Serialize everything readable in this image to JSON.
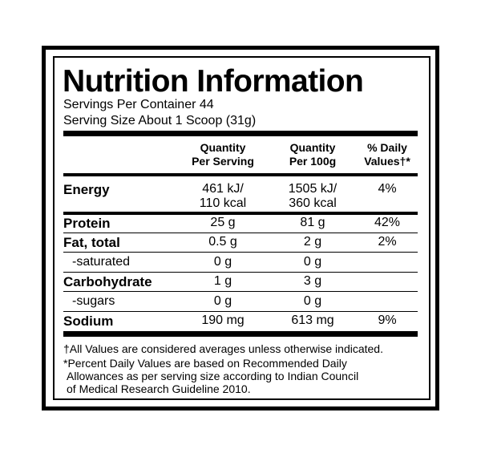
{
  "title": "Nutrition Information",
  "servings": [
    "Servings Per Container 44",
    "Serving Size About 1 Scoop (31g)"
  ],
  "headers": [
    [
      "Quantity",
      "Per Serving"
    ],
    [
      "Quantity",
      "Per 100g"
    ],
    [
      "% Daily",
      "Values†*"
    ]
  ],
  "rows": [
    {
      "name": "Energy",
      "per_serving": [
        "461 kJ/",
        "110 kcal"
      ],
      "per_100g": [
        "1505 kJ/",
        "360 kcal"
      ],
      "daily": "4%"
    },
    {
      "name": "Protein",
      "per_serving": "25 g",
      "per_100g": "81 g",
      "daily": "42%"
    },
    {
      "name": "Fat, total",
      "per_serving": "0.5 g",
      "per_100g": "2 g",
      "daily": "2%"
    },
    {
      "name": "-saturated",
      "per_serving": "0 g",
      "per_100g": "0 g"
    },
    {
      "name": "Carbohydrate",
      "per_serving": "1 g",
      "per_100g": "3 g"
    },
    {
      "name": "-sugars",
      "per_serving": "0 g",
      "per_100g": "0 g"
    },
    {
      "name": "Sodium",
      "per_serving": "190 mg",
      "per_100g": "613 mg",
      "daily": "9%"
    }
  ],
  "footnotes": [
    "†All Values are considered averages unless otherwise indicated.",
    "*Percent Daily Values are based on Recommended Daily",
    "Allowances as per serving size according to Indian Council",
    "of Medical Research Guideline 2010."
  ]
}
